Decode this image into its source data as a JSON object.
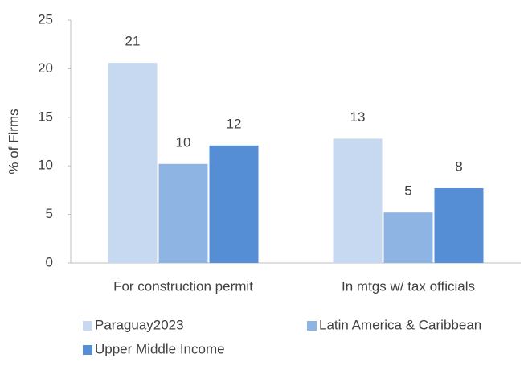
{
  "chart_data": {
    "type": "bar",
    "y_label": "% of Firms",
    "categories": [
      "For construction permit",
      "In mtgs w/ tax officials"
    ],
    "series": [
      {
        "name": "Paraguay2023",
        "color": "#c6d9f0",
        "values": [
          20.6,
          12.8
        ],
        "value_labels": [
          "21",
          "13"
        ]
      },
      {
        "name": "Latin America & Caribbean",
        "color": "#8eb4e3",
        "values": [
          10.2,
          5.2
        ],
        "value_labels": [
          "10",
          "5"
        ]
      },
      {
        "name": "Upper Middle Income",
        "color": "#558ed5",
        "values": [
          12.1,
          7.7
        ],
        "value_labels": [
          "12",
          "8"
        ]
      }
    ],
    "ylim": [
      0,
      25
    ],
    "yticks": [
      0,
      5,
      10,
      15,
      20,
      25
    ],
    "grid": false,
    "legend": "bottom"
  }
}
